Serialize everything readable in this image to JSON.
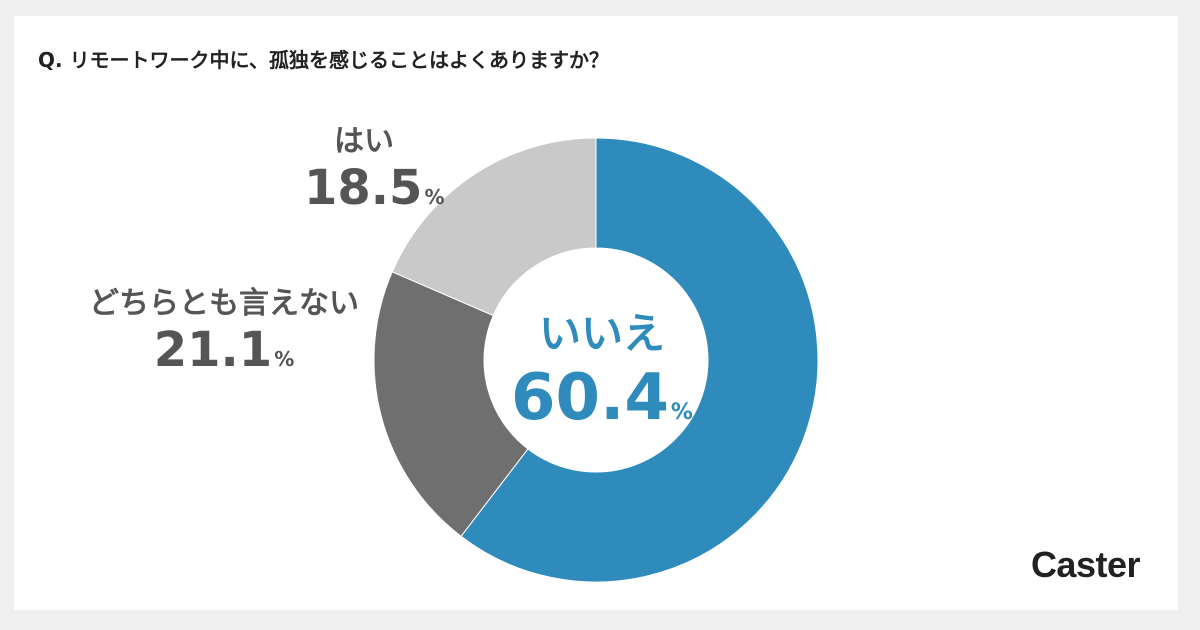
{
  "chart_data": {
    "type": "pie",
    "variant": "donut",
    "title": "Q. リモートワーク中に、孤独を感じることはよくありますか？",
    "unit": "%",
    "slices": [
      {
        "label": "いいえ",
        "value": 60.4,
        "value_text": "60.4",
        "color": "#2e8bbb"
      },
      {
        "label": "どちらとも言えない",
        "value": 21.1,
        "value_text": "21.1",
        "color": "#6f6f6f"
      },
      {
        "label": "はい",
        "value": 18.5,
        "value_text": "18.5",
        "color": "#c9c9c9"
      }
    ],
    "start": "12 o'clock",
    "direction": "clockwise",
    "legend": "none"
  },
  "brand": {
    "logo_text": "Caster"
  }
}
